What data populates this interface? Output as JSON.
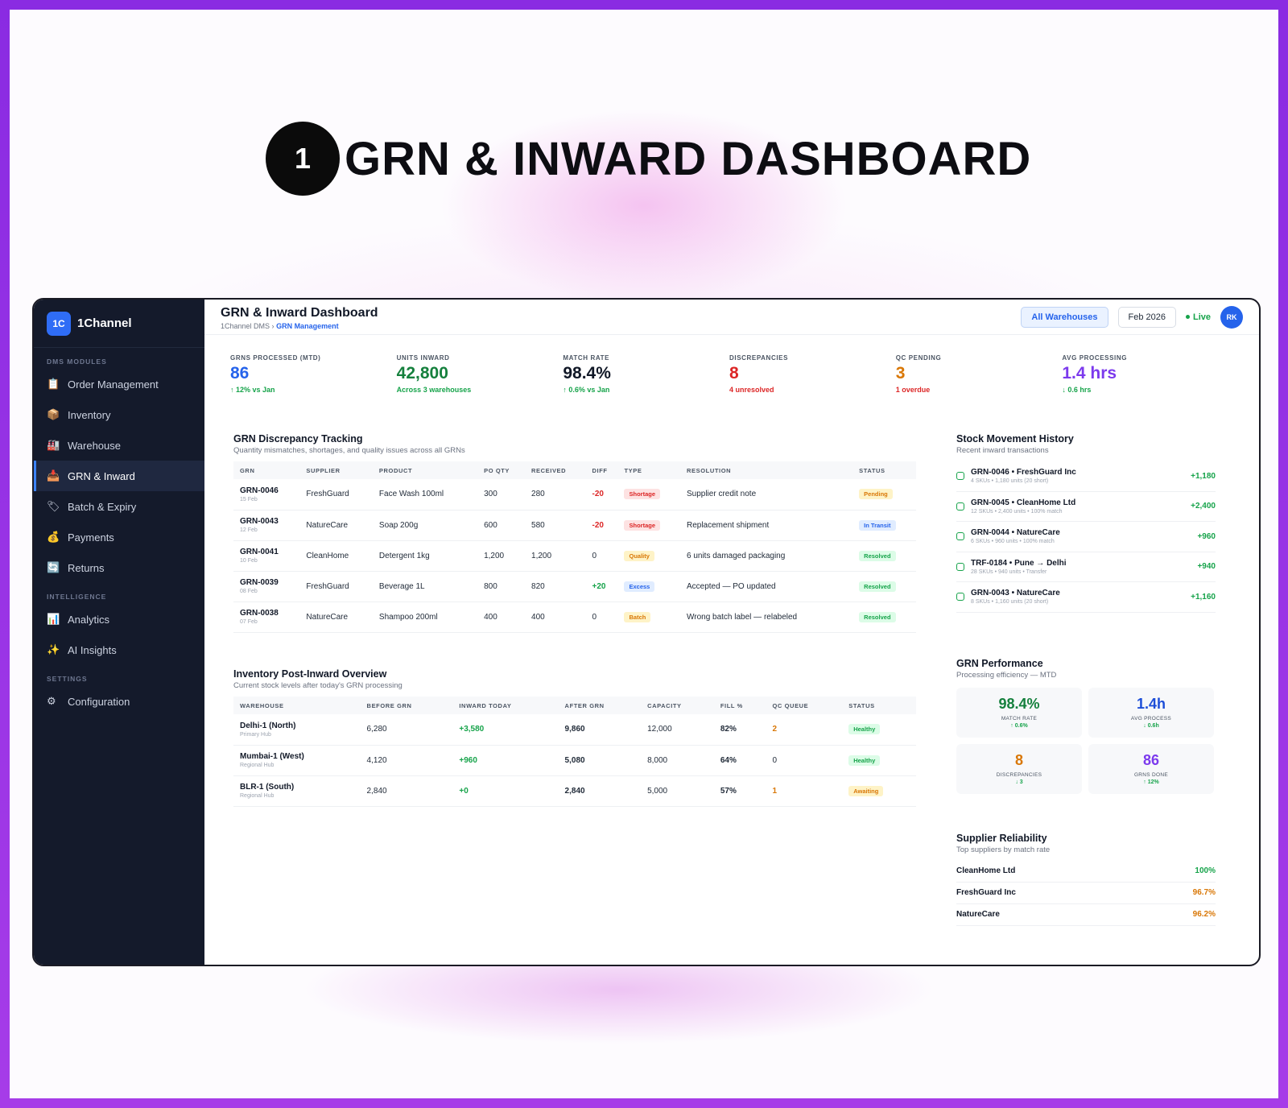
{
  "hero": {
    "number": "1",
    "title": "GRN & INWARD DASHBOARD"
  },
  "brand": {
    "logo": "1C",
    "name": "1Channel"
  },
  "sidebar": {
    "sections": [
      {
        "label": "DMS MODULES",
        "items": [
          {
            "icon": "clipboard-icon",
            "glyph": "📋",
            "label": "Order Management",
            "active": false
          },
          {
            "icon": "box-icon",
            "glyph": "📦",
            "label": "Inventory",
            "active": false
          },
          {
            "icon": "factory-icon",
            "glyph": "🏭",
            "label": "Warehouse",
            "active": false
          },
          {
            "icon": "inbox-icon",
            "glyph": "📥",
            "label": "GRN & Inward",
            "active": true
          },
          {
            "icon": "tag-icon",
            "glyph": "🏷",
            "label": "Batch & Expiry",
            "active": false
          },
          {
            "icon": "money-bag-icon",
            "glyph": "💰",
            "label": "Payments",
            "active": false
          },
          {
            "icon": "refresh-icon",
            "glyph": "🔄",
            "label": "Returns",
            "active": false
          }
        ]
      },
      {
        "label": "INTELLIGENCE",
        "items": [
          {
            "icon": "bar-chart-icon",
            "glyph": "📊",
            "label": "Analytics",
            "active": false
          },
          {
            "icon": "sparkles-icon",
            "glyph": "✨",
            "label": "AI Insights",
            "active": false
          }
        ]
      },
      {
        "label": "SETTINGS",
        "items": [
          {
            "icon": "gear-icon",
            "glyph": "⚙",
            "label": "Configuration",
            "active": false
          }
        ]
      }
    ]
  },
  "header": {
    "title": "GRN & Inward Dashboard",
    "breadcrumb_root": "1Channel DMS",
    "breadcrumb_sep": "›",
    "breadcrumb_current": "GRN Management",
    "warehouse_filter": "All Warehouses",
    "date_filter": "Feb 2026",
    "live_label": "Live",
    "avatar": "RK"
  },
  "kpis": [
    {
      "label": "GRNS PROCESSED (MTD)",
      "value": "86",
      "sub": "↑ 12% vs Jan",
      "color": "#2563eb",
      "sub_color": "#16a34a"
    },
    {
      "label": "UNITS INWARD",
      "value": "42,800",
      "sub": "Across 3 warehouses",
      "color": "#15803d",
      "sub_color": "#16a34a"
    },
    {
      "label": "MATCH RATE",
      "value": "98.4%",
      "sub": "↑ 0.6% vs Jan",
      "color": "#111827",
      "sub_color": "#16a34a"
    },
    {
      "label": "DISCREPANCIES",
      "value": "8",
      "sub": "4 unresolved",
      "color": "#dc2626",
      "sub_color": "#dc2626"
    },
    {
      "label": "QC PENDING",
      "value": "3",
      "sub": "1 overdue",
      "color": "#d97706",
      "sub_color": "#dc2626"
    },
    {
      "label": "AVG PROCESSING",
      "value": "1.4 hrs",
      "sub": "↓ 0.6 hrs",
      "color": "#7c3aed",
      "sub_color": "#16a34a"
    }
  ],
  "discrepancy": {
    "title": "GRN Discrepancy Tracking",
    "subtitle": "Quantity mismatches, shortages, and quality issues across all GRNs",
    "columns": [
      "GRN",
      "SUPPLIER",
      "PRODUCT",
      "PO QTY",
      "RECEIVED",
      "DIFF",
      "TYPE",
      "RESOLUTION",
      "STATUS"
    ],
    "rows": [
      {
        "grn": "GRN-0046",
        "date": "15 Feb",
        "supplier": "FreshGuard",
        "product": "Face Wash 100ml",
        "po_qty": "300",
        "received": "280",
        "diff": "-20",
        "diff_kind": "neg",
        "type": "Shortage",
        "type_kind": "shortage",
        "resolution": "Supplier credit note",
        "status": "Pending",
        "status_kind": "pending"
      },
      {
        "grn": "GRN-0043",
        "date": "12 Feb",
        "supplier": "NatureCare",
        "product": "Soap 200g",
        "po_qty": "600",
        "received": "580",
        "diff": "-20",
        "diff_kind": "neg",
        "type": "Shortage",
        "type_kind": "shortage",
        "resolution": "Replacement shipment",
        "status": "In Transit",
        "status_kind": "transit"
      },
      {
        "grn": "GRN-0041",
        "date": "10 Feb",
        "supplier": "CleanHome",
        "product": "Detergent 1kg",
        "po_qty": "1,200",
        "received": "1,200",
        "diff": "0",
        "diff_kind": "zero",
        "type": "Quality",
        "type_kind": "quality",
        "resolution": "6 units damaged packaging",
        "status": "Resolved",
        "status_kind": "resolved"
      },
      {
        "grn": "GRN-0039",
        "date": "08 Feb",
        "supplier": "FreshGuard",
        "product": "Beverage 1L",
        "po_qty": "800",
        "received": "820",
        "diff": "+20",
        "diff_kind": "pos",
        "type": "Excess",
        "type_kind": "excess",
        "resolution": "Accepted — PO updated",
        "status": "Resolved",
        "status_kind": "resolved"
      },
      {
        "grn": "GRN-0038",
        "date": "07 Feb",
        "supplier": "NatureCare",
        "product": "Shampoo 200ml",
        "po_qty": "400",
        "received": "400",
        "diff": "0",
        "diff_kind": "zero",
        "type": "Batch",
        "type_kind": "batch",
        "resolution": "Wrong batch label — relabeled",
        "status": "Resolved",
        "status_kind": "resolved"
      }
    ]
  },
  "inventory": {
    "title": "Inventory Post-Inward Overview",
    "subtitle": "Current stock levels after today's GRN processing",
    "columns": [
      "WAREHOUSE",
      "BEFORE GRN",
      "INWARD TODAY",
      "AFTER GRN",
      "CAPACITY",
      "FILL %",
      "QC QUEUE",
      "STATUS"
    ],
    "rows": [
      {
        "name": "Delhi-1 (North)",
        "type": "Primary Hub",
        "before": "6,280",
        "inward": "+3,580",
        "after": "9,860",
        "capacity": "12,000",
        "fill": "82%",
        "qc": "2",
        "qc_kind": "warn",
        "status": "Healthy",
        "status_kind": "resolved"
      },
      {
        "name": "Mumbai-1 (West)",
        "type": "Regional Hub",
        "before": "4,120",
        "inward": "+960",
        "after": "5,080",
        "capacity": "8,000",
        "fill": "64%",
        "qc": "0",
        "qc_kind": "zero",
        "status": "Healthy",
        "status_kind": "resolved"
      },
      {
        "name": "BLR-1 (South)",
        "type": "Regional Hub",
        "before": "2,840",
        "inward": "+0",
        "after": "2,840",
        "capacity": "5,000",
        "fill": "57%",
        "qc": "1",
        "qc_kind": "warn",
        "status": "Awaiting",
        "status_kind": "pending"
      }
    ]
  },
  "movement": {
    "title": "Stock Movement History",
    "subtitle": "Recent inward transactions",
    "items": [
      {
        "title": "GRN-0046 • FreshGuard Inc",
        "sub": "4 SKUs • 1,180 units (20 short)",
        "value": "+1,180"
      },
      {
        "title": "GRN-0045 • CleanHome Ltd",
        "sub": "12 SKUs • 2,400 units • 100% match",
        "value": "+2,400"
      },
      {
        "title": "GRN-0044 • NatureCare",
        "sub": "6 SKUs • 960 units • 100% match",
        "value": "+960"
      },
      {
        "title": "TRF-0184 • Pune → Delhi",
        "sub": "28 SKUs • 940 units • Transfer",
        "value": "+940"
      },
      {
        "title": "GRN-0043 • NatureCare",
        "sub": "8 SKUs • 1,160 units (20 short)",
        "value": "+1,160"
      }
    ]
  },
  "performance": {
    "title": "GRN Performance",
    "subtitle": "Processing efficiency — MTD",
    "cards": [
      {
        "value": "98.4%",
        "label": "MATCH RATE",
        "delta": "↑ 0.6%",
        "color": "#15803d",
        "delta_color": "#16a34a"
      },
      {
        "value": "1.4h",
        "label": "AVG PROCESS",
        "delta": "↓ 0.6h",
        "color": "#1d4ed8",
        "delta_color": "#16a34a"
      },
      {
        "value": "8",
        "label": "DISCREPANCIES",
        "delta": "↓ 3",
        "color": "#d97706",
        "delta_color": "#16a34a"
      },
      {
        "value": "86",
        "label": "GRNS DONE",
        "delta": "↑ 12%",
        "color": "#7c3aed",
        "delta_color": "#16a34a"
      }
    ]
  },
  "suppliers": {
    "title": "Supplier Reliability",
    "subtitle": "Top suppliers by match rate",
    "items": [
      {
        "name": "CleanHome Ltd",
        "rate": "100%",
        "color": "#16a34a"
      },
      {
        "name": "FreshGuard Inc",
        "rate": "96.7%",
        "color": "#d97706"
      },
      {
        "name": "NatureCare",
        "rate": "96.2%",
        "color": "#d97706"
      }
    ]
  },
  "colors": {
    "pill_shortage_bg": "#fde2e2",
    "pill_shortage_fg": "#dc2626",
    "pill_quality_bg": "#fef3c7",
    "pill_quality_fg": "#d97706",
    "pill_excess_bg": "#e0ecff",
    "pill_excess_fg": "#2563eb",
    "pill_batch_bg": "#fef3c7",
    "pill_batch_fg": "#d97706",
    "pill_pending_bg": "#fef3c7",
    "pill_pending_fg": "#d97706",
    "pill_transit_bg": "#e0ecff",
    "pill_transit_fg": "#2563eb",
    "pill_resolved_bg": "#dcfce7",
    "pill_resolved_fg": "#16a34a"
  }
}
